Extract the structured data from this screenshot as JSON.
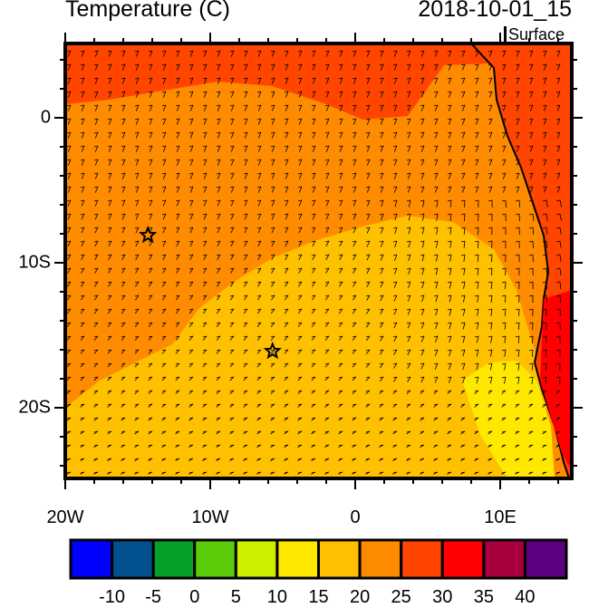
{
  "header": {
    "title": "Temperature (C)",
    "date": "2018-10-01_15",
    "level": "Surface"
  },
  "axes": {
    "x_ticks": [
      {
        "lon": -20,
        "label": "20W"
      },
      {
        "lon": -10,
        "label": "10W"
      },
      {
        "lon": 0,
        "label": "0"
      },
      {
        "lon": 10,
        "label": "10E"
      }
    ],
    "y_ticks": [
      {
        "lat": 0,
        "label": "0"
      },
      {
        "lat": -10,
        "label": "10S"
      },
      {
        "lat": -20,
        "label": "20S"
      }
    ],
    "lon_range": [
      -20,
      15
    ],
    "lat_range": [
      -24.9,
      5.1
    ]
  },
  "markers": [
    {
      "type": "star",
      "lon": -14.3,
      "lat": -8.1
    },
    {
      "type": "star",
      "lon": -5.7,
      "lat": -16.1
    }
  ],
  "colorbar": {
    "colors": [
      "#0000ff",
      "#03508f",
      "#07a02a",
      "#5acc0a",
      "#ccf000",
      "#ffe800",
      "#ffc000",
      "#ff8c00",
      "#ff4500",
      "#ff0000",
      "#a8003e",
      "#5e0080"
    ],
    "labels": [
      "-10",
      "-5",
      "0",
      "5",
      "10",
      "15",
      "20",
      "25",
      "30",
      "35",
      "40"
    ]
  }
}
